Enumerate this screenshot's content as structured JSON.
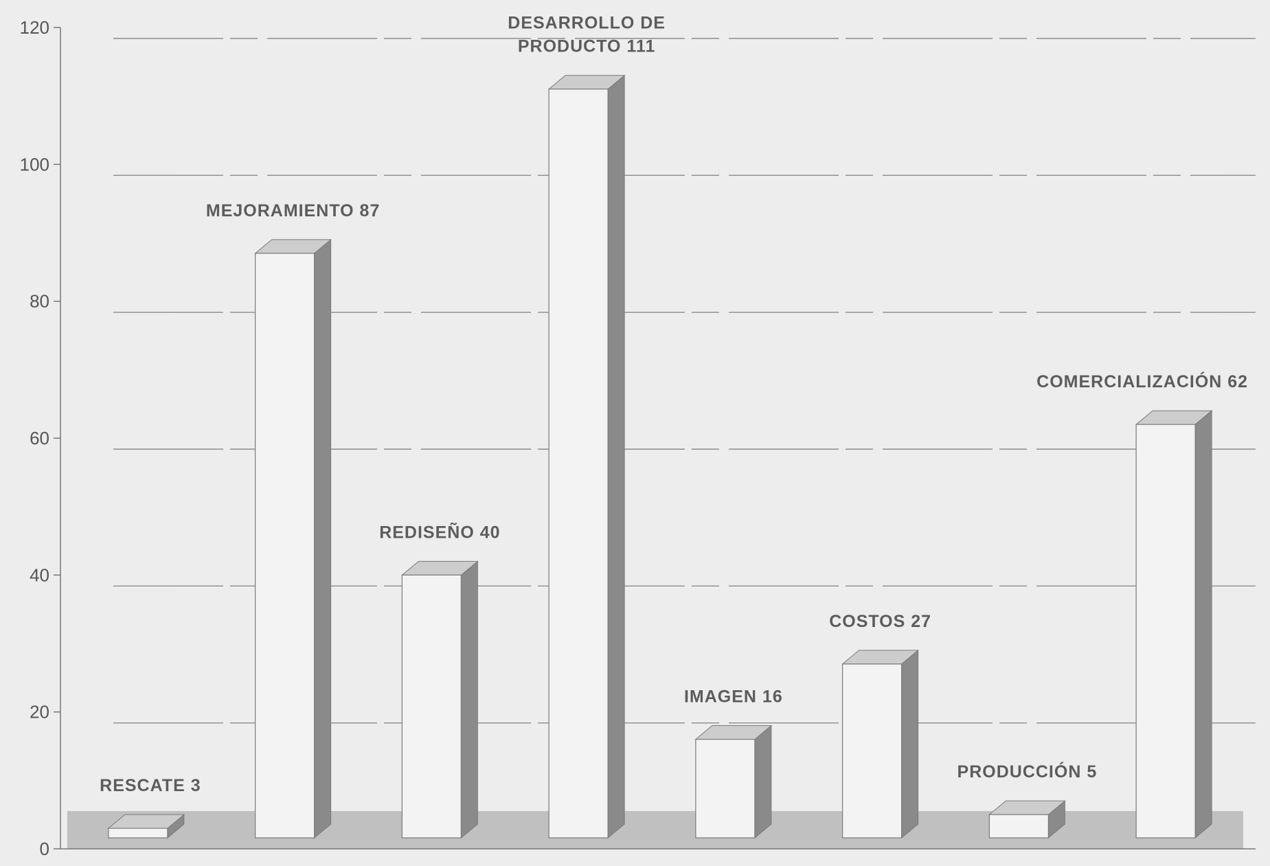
{
  "chart_data": {
    "type": "bar",
    "style": "3d-column",
    "categories": [
      "RESCATE",
      "MEJORAMIENTO",
      "REDISEÑO",
      "DESARROLLO DE PRODUCTO",
      "IMAGEN",
      "COSTOS",
      "PRODUCCIÓN",
      "COMERCIALIZACIÓN"
    ],
    "values": [
      3,
      87,
      40,
      111,
      16,
      27,
      5,
      62
    ],
    "data_labels": [
      [
        "RESCATE 3"
      ],
      [
        "MEJORAMIENTO 87"
      ],
      [
        "REDISEÑO 40"
      ],
      [
        "DESARROLLO DE",
        "PRODUCTO 111"
      ],
      [
        "IMAGEN 16"
      ],
      [
        "COSTOS 27"
      ],
      [
        "PRODUCCIÓN 5"
      ],
      [
        "COMERCIALIZACIÓN 62"
      ]
    ],
    "yticks": [
      "0",
      "20",
      "40",
      "60",
      "80",
      "100",
      "120"
    ],
    "ylim": [
      0,
      120
    ],
    "title": "",
    "xlabel": "",
    "ylabel": "",
    "grid": true,
    "legend": "none"
  },
  "colors": {
    "background": "#ededed",
    "bar_front": "#f3f3f3",
    "bar_side": "#8a8a8a",
    "bar_top": "#cdcdcd",
    "bar_outline": "#7a7a7a",
    "gridline": "#8c8c8c",
    "axis": "#777777",
    "floor": "#9a9a9a",
    "label": "#5c5c5c"
  }
}
